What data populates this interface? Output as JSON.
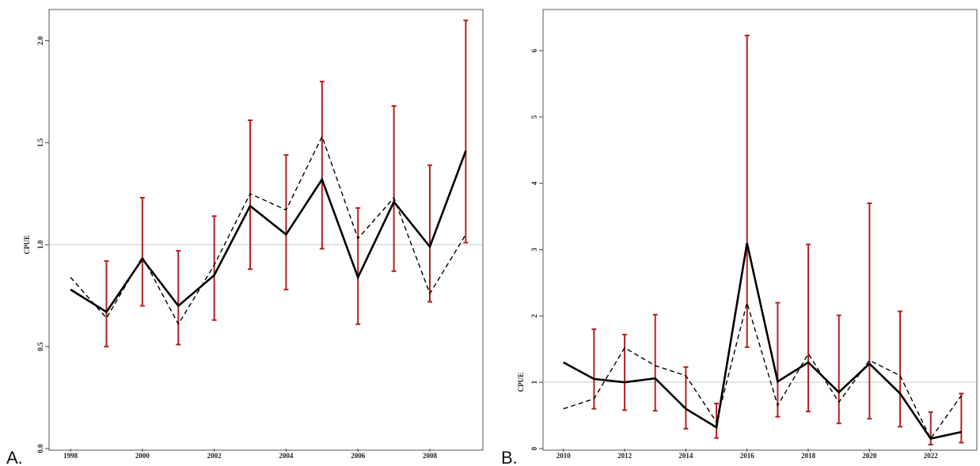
{
  "panels": [
    {
      "letter": "A."
    },
    {
      "letter": "B."
    }
  ],
  "chart_data": [
    {
      "type": "line",
      "ylabel": "CPUE",
      "xlabel": "",
      "x": [
        1998,
        1999,
        2000,
        2001,
        2002,
        2003,
        2004,
        2005,
        2006,
        2007,
        2008,
        2009
      ],
      "x_ticks": [
        1998,
        2000,
        2002,
        2004,
        2006,
        2008
      ],
      "x_tick_labels": [
        "1998",
        "2000",
        "2002",
        "2004",
        "2006",
        "2008"
      ],
      "xlim": [
        1997.8,
        2009.3
      ],
      "ylim": [
        0,
        2.13
      ],
      "y_ticks": [
        0,
        0.5,
        1.0,
        1.5,
        2.0
      ],
      "y_tick_labels": [
        "0.0",
        "0.5",
        "1.0",
        "1.5",
        "2.0"
      ],
      "reference_line": 1.0,
      "series": [
        {
          "style": "solid",
          "color": "#000000",
          "values": [
            0.78,
            0.67,
            0.93,
            0.7,
            0.85,
            1.19,
            1.05,
            1.32,
            0.84,
            1.21,
            0.99,
            1.46
          ]
        },
        {
          "style": "dashed",
          "color": "#000000",
          "values": [
            0.84,
            0.64,
            0.94,
            0.61,
            0.9,
            1.25,
            1.17,
            1.53,
            1.03,
            1.23,
            0.76,
            1.05
          ]
        }
      ],
      "error_bars": {
        "color": "#b22222",
        "x": [
          1999,
          2000,
          2001,
          2002,
          2003,
          2004,
          2005,
          2006,
          2007,
          2008,
          2009
        ],
        "lower": [
          0.5,
          0.7,
          0.51,
          0.63,
          0.88,
          0.78,
          0.98,
          0.61,
          0.87,
          0.72,
          1.01
        ],
        "upper": [
          0.92,
          1.23,
          0.97,
          1.14,
          1.61,
          1.44,
          1.8,
          1.18,
          1.68,
          1.39,
          2.1
        ]
      },
      "grid": false
    },
    {
      "type": "line",
      "ylabel": "CPUE",
      "xlabel": "",
      "x": [
        2010,
        2011,
        2012,
        2013,
        2014,
        2015,
        2016,
        2017,
        2018,
        2019,
        2020,
        2021,
        2022,
        2023
      ],
      "x_ticks": [
        2010,
        2012,
        2014,
        2016,
        2018,
        2020,
        2022
      ],
      "x_tick_labels": [
        "2010",
        "2012",
        "2014",
        "2016",
        "2018",
        "2020",
        "2022"
      ],
      "xlim": [
        2009.8,
        2023.3
      ],
      "ylim": [
        0,
        6.55
      ],
      "y_ticks": [
        0,
        1,
        2,
        3,
        4,
        5,
        6
      ],
      "y_tick_labels": [
        "0",
        "1",
        "2",
        "3",
        "4",
        "5",
        "6"
      ],
      "reference_line": 1.0,
      "series": [
        {
          "style": "solid",
          "color": "#000000",
          "values": [
            1.3,
            1.05,
            1.0,
            1.06,
            0.6,
            0.32,
            3.1,
            1.01,
            1.3,
            0.85,
            1.28,
            0.83,
            0.15,
            0.25
          ]
        },
        {
          "style": "dashed",
          "color": "#000000",
          "values": [
            0.6,
            0.75,
            1.52,
            1.25,
            1.1,
            0.4,
            2.2,
            0.65,
            1.43,
            0.7,
            1.33,
            1.1,
            0.15,
            0.8
          ]
        }
      ],
      "error_bars": {
        "color": "#b22222",
        "x": [
          2011,
          2012,
          2013,
          2014,
          2015,
          2016,
          2017,
          2018,
          2019,
          2020,
          2021,
          2022,
          2023
        ],
        "lower": [
          0.6,
          0.58,
          0.57,
          0.3,
          0.16,
          1.53,
          0.48,
          0.56,
          0.38,
          0.45,
          0.33,
          0.06,
          0.09
        ],
        "upper": [
          1.8,
          1.72,
          2.02,
          1.23,
          0.68,
          6.23,
          2.2,
          3.08,
          2.01,
          3.7,
          2.07,
          0.55,
          0.83
        ]
      },
      "grid": false
    }
  ]
}
